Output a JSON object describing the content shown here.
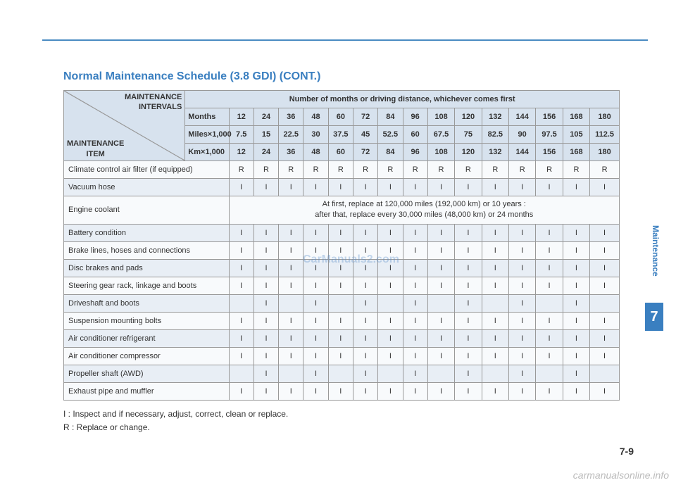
{
  "title": "Normal Maintenance Schedule (3.8 GDI) (CONT.)",
  "corner": {
    "top": "MAINTENANCE INTERVALS",
    "bottom": "MAINTENANCE ITEM"
  },
  "header_span": "Number of months or driving distance, whichever comes first",
  "rows_header": [
    {
      "label": "Months",
      "vals": [
        "12",
        "24",
        "36",
        "48",
        "60",
        "72",
        "84",
        "96",
        "108",
        "120",
        "132",
        "144",
        "156",
        "168",
        "180"
      ]
    },
    {
      "label": "Miles×1,000",
      "vals": [
        "7.5",
        "15",
        "22.5",
        "30",
        "37.5",
        "45",
        "52.5",
        "60",
        "67.5",
        "75",
        "82.5",
        "90",
        "97.5",
        "105",
        "112.5"
      ]
    },
    {
      "label": "Km×1,000",
      "vals": [
        "12",
        "24",
        "36",
        "48",
        "60",
        "72",
        "84",
        "96",
        "108",
        "120",
        "132",
        "144",
        "156",
        "168",
        "180"
      ]
    }
  ],
  "coolant_note": "At first, replace at 120,000 miles (192,000 km) or 10 years :\nafter that, replace every 30,000 miles (48,000 km) or 24 months",
  "items": [
    {
      "name": "Climate control air filter (if equipped)",
      "vals": [
        "R",
        "R",
        "R",
        "R",
        "R",
        "R",
        "R",
        "R",
        "R",
        "R",
        "R",
        "R",
        "R",
        "R",
        "R"
      ]
    },
    {
      "name": "Vacuum hose",
      "vals": [
        "I",
        "I",
        "I",
        "I",
        "I",
        "I",
        "I",
        "I",
        "I",
        "I",
        "I",
        "I",
        "I",
        "I",
        "I"
      ]
    },
    {
      "name": "Engine coolant",
      "note": true
    },
    {
      "name": "Battery condition",
      "vals": [
        "I",
        "I",
        "I",
        "I",
        "I",
        "I",
        "I",
        "I",
        "I",
        "I",
        "I",
        "I",
        "I",
        "I",
        "I"
      ]
    },
    {
      "name": "Brake lines, hoses and connections",
      "vals": [
        "I",
        "I",
        "I",
        "I",
        "I",
        "I",
        "I",
        "I",
        "I",
        "I",
        "I",
        "I",
        "I",
        "I",
        "I"
      ]
    },
    {
      "name": "Disc brakes and pads",
      "vals": [
        "I",
        "I",
        "I",
        "I",
        "I",
        "I",
        "I",
        "I",
        "I",
        "I",
        "I",
        "I",
        "I",
        "I",
        "I"
      ]
    },
    {
      "name": "Steering gear rack, linkage and boots",
      "vals": [
        "I",
        "I",
        "I",
        "I",
        "I",
        "I",
        "I",
        "I",
        "I",
        "I",
        "I",
        "I",
        "I",
        "I",
        "I"
      ]
    },
    {
      "name": "Driveshaft and boots",
      "vals": [
        "",
        "I",
        "",
        "I",
        "",
        "I",
        "",
        "I",
        "",
        "I",
        "",
        "I",
        "",
        "I",
        ""
      ]
    },
    {
      "name": "Suspension mounting bolts",
      "vals": [
        "I",
        "I",
        "I",
        "I",
        "I",
        "I",
        "I",
        "I",
        "I",
        "I",
        "I",
        "I",
        "I",
        "I",
        "I"
      ]
    },
    {
      "name": "Air conditioner refrigerant",
      "vals": [
        "I",
        "I",
        "I",
        "I",
        "I",
        "I",
        "I",
        "I",
        "I",
        "I",
        "I",
        "I",
        "I",
        "I",
        "I"
      ]
    },
    {
      "name": "Air conditioner compressor",
      "vals": [
        "I",
        "I",
        "I",
        "I",
        "I",
        "I",
        "I",
        "I",
        "I",
        "I",
        "I",
        "I",
        "I",
        "I",
        "I"
      ]
    },
    {
      "name": "Propeller shaft (AWD)",
      "vals": [
        "",
        "I",
        "",
        "I",
        "",
        "I",
        "",
        "I",
        "",
        "I",
        "",
        "I",
        "",
        "I",
        ""
      ]
    },
    {
      "name": "Exhaust pipe and muffler",
      "vals": [
        "I",
        "I",
        "I",
        "I",
        "I",
        "I",
        "I",
        "I",
        "I",
        "I",
        "I",
        "I",
        "I",
        "I",
        "I"
      ]
    }
  ],
  "legend": {
    "i": "I   : Inspect and if necessary, adjust, correct, clean or replace.",
    "r": "R : Replace or change."
  },
  "side_label": "Maintenance",
  "chapter": "7",
  "page_num": "7-9",
  "footer": "carmanualsonline.info",
  "watermark": "CarManuals2.com",
  "colors": {
    "accent": "#3a7fc0",
    "hdr_bg": "#d7e2ee",
    "row_odd": "#e8eef5",
    "row_even": "#f8fafc",
    "border": "#999999"
  },
  "col_widths": {
    "item_col": 226,
    "label_col": 60,
    "val_col": 34
  }
}
